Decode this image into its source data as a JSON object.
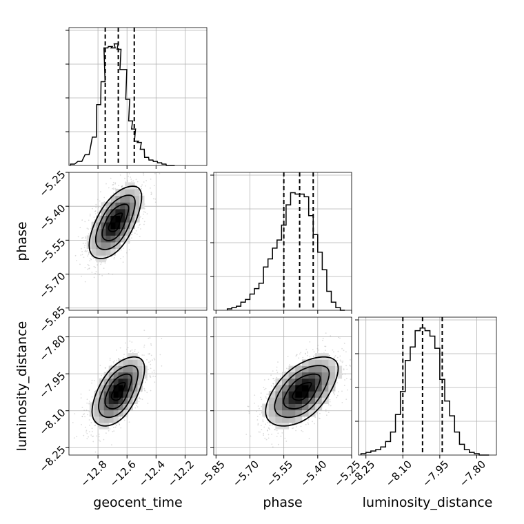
{
  "chart_data": {
    "type": "corner",
    "parameters": [
      {
        "name": "geocent_time",
        "range": [
          -13.0,
          -12.05
        ],
        "ticks": [
          -12.8,
          -12.6,
          -12.4,
          -12.2
        ],
        "tick_labels": [
          "−12.8",
          "−12.6",
          "−12.4",
          "−12.2"
        ],
        "median": -12.66,
        "quantiles": [
          -12.75,
          -12.66,
          -12.55
        ],
        "bin_centers": [
          -12.975,
          -12.925,
          -12.875,
          -12.825,
          -12.795,
          -12.765,
          -12.745,
          -12.715,
          -12.695,
          -12.675,
          -12.655,
          -12.635,
          -12.615,
          -12.595,
          -12.575,
          -12.555,
          -12.535,
          -12.515,
          -12.495,
          -12.465,
          -12.435,
          -12.405,
          -12.375,
          -12.345,
          -12.315,
          -12.285
        ],
        "hist_density": [
          0.01,
          0.03,
          0.08,
          0.21,
          0.45,
          0.62,
          0.87,
          0.88,
          0.87,
          0.9,
          0.86,
          0.71,
          0.71,
          0.49,
          0.33,
          0.27,
          0.18,
          0.17,
          0.12,
          0.06,
          0.04,
          0.03,
          0.02,
          0.01,
          0.0,
          0.0
        ]
      },
      {
        "name": "phase",
        "range": [
          -5.86,
          -5.25
        ],
        "ticks": [
          -5.85,
          -5.7,
          -5.55,
          -5.4,
          -5.25
        ],
        "tick_labels": [
          "−5.85",
          "−5.70",
          "−5.55",
          "−5.40",
          "−5.25"
        ],
        "median": -5.48,
        "quantiles": [
          -5.55,
          -5.48,
          -5.42
        ],
        "bin_centers": [
          -5.79,
          -5.77,
          -5.75,
          -5.73,
          -5.71,
          -5.69,
          -5.67,
          -5.65,
          -5.63,
          -5.61,
          -5.59,
          -5.57,
          -5.55,
          -5.53,
          -5.51,
          -5.49,
          -5.47,
          -5.45,
          -5.43,
          -5.41,
          -5.39,
          -5.37,
          -5.35,
          -5.33,
          -5.31,
          -5.29
        ],
        "hist_density": [
          0.01,
          0.02,
          0.03,
          0.06,
          0.08,
          0.12,
          0.16,
          0.2,
          0.32,
          0.38,
          0.46,
          0.52,
          0.63,
          0.78,
          0.87,
          0.86,
          0.86,
          0.84,
          0.7,
          0.56,
          0.43,
          0.3,
          0.14,
          0.06,
          0.02,
          0.0
        ]
      },
      {
        "name": "luminosity_distance",
        "range": [
          -8.28,
          -7.72
        ],
        "ticks": [
          -8.25,
          -8.1,
          -7.95,
          -7.8
        ],
        "tick_labels": [
          "−8.25",
          "−8.10",
          "−7.95",
          "−7.80"
        ],
        "median": -8.02,
        "quantiles": [
          -8.1,
          -8.02,
          -7.94
        ],
        "bin_centers": [
          -8.26,
          -8.24,
          -8.22,
          -8.2,
          -8.18,
          -8.16,
          -8.14,
          -8.12,
          -8.1,
          -8.08,
          -8.06,
          -8.04,
          -8.02,
          -8.0,
          -7.98,
          -7.96,
          -7.94,
          -7.92,
          -7.9,
          -7.88,
          -7.86,
          -7.84,
          -7.82,
          -7.8,
          -7.78,
          -7.76
        ],
        "hist_density": [
          0.01,
          0.02,
          0.03,
          0.04,
          0.06,
          0.1,
          0.17,
          0.3,
          0.47,
          0.7,
          0.8,
          0.92,
          0.94,
          0.92,
          0.88,
          0.79,
          0.56,
          0.4,
          0.29,
          0.17,
          0.08,
          0.04,
          0.02,
          0.01,
          0.0,
          0.0
        ]
      }
    ],
    "joint": [
      {
        "x": "geocent_time",
        "y": "phase",
        "mean": [
          -12.68,
          -5.47
        ],
        "sd": [
          0.09,
          0.08
        ],
        "corr": 0.6
      },
      {
        "x": "geocent_time",
        "y": "luminosity_distance",
        "mean": [
          -12.66,
          -8.02
        ],
        "sd": [
          0.09,
          0.07
        ],
        "corr": 0.55
      },
      {
        "x": "phase",
        "y": "luminosity_distance",
        "mean": [
          -5.47,
          -8.02
        ],
        "sd": [
          0.08,
          0.07
        ],
        "corr": 0.55
      }
    ],
    "contour_levels": [
      "39.3%",
      "86.5%",
      "98.9%"
    ],
    "grid": true
  }
}
